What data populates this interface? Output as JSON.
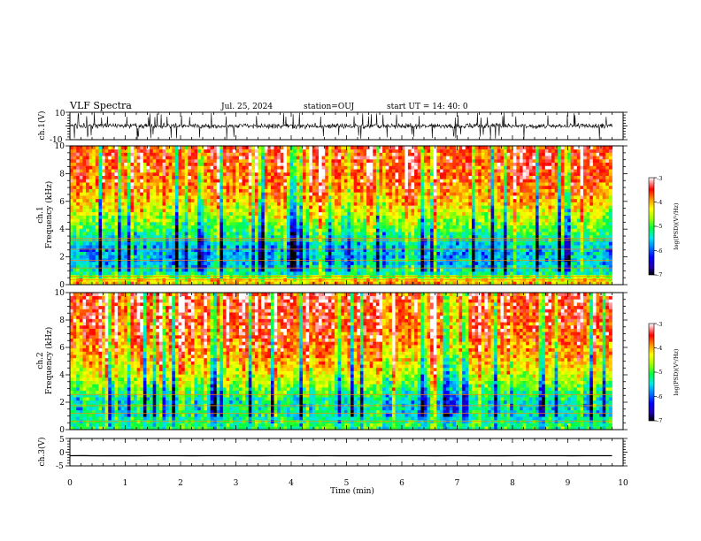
{
  "header": {
    "title": "VLF Spectra",
    "date": "Jul. 25, 2024",
    "station": "station=OUJ",
    "start": "start UT =  14: 40: 0"
  },
  "chart_data": [
    {
      "type": "line",
      "panel": "ch1-waveform",
      "ylabel": "ch.1(V)",
      "ylim": [
        -10,
        10
      ],
      "ytick_labels": [
        "10",
        "-10"
      ],
      "xlim": [
        0,
        10
      ],
      "data_extent_min": 9.8,
      "baseline": 0,
      "typical_amplitude": 2.5,
      "spike_amplitude": 10
    },
    {
      "type": "heatmap",
      "panel": "ch1-spectrogram",
      "ylabel_channel": "ch.1",
      "ylabel": "Frequency  (kHz)",
      "ylim": [
        0,
        10
      ],
      "ytick_labels": [
        "0",
        "2",
        "4",
        "6",
        "8",
        "10"
      ],
      "xlim": [
        0,
        10
      ],
      "data_extent_min": 9.8,
      "color_range": [
        -7,
        -3
      ],
      "colorbar_label": "log(PSD)(V²/Hz)",
      "colorbar_ticks": [
        "-3",
        "-4",
        "-5",
        "-6",
        "-7"
      ],
      "profile": [
        {
          "f": 0.3,
          "v": -4.0
        },
        {
          "f": 0.8,
          "v": -5.2
        },
        {
          "f": 1.5,
          "v": -5.6
        },
        {
          "f": 2.5,
          "v": -5.7
        },
        {
          "f": 3.5,
          "v": -5.2
        },
        {
          "f": 5.0,
          "v": -4.5
        },
        {
          "f": 6.5,
          "v": -3.9
        },
        {
          "f": 8.0,
          "v": -3.6
        },
        {
          "f": 10.0,
          "v": -3.5
        }
      ],
      "line_freqs": [
        0.35,
        0.6,
        1.2,
        1.75,
        2.55,
        3.2,
        3.35
      ]
    },
    {
      "type": "heatmap",
      "panel": "ch2-spectrogram",
      "ylabel_channel": "ch.2",
      "ylabel": "Frequency  (kHz)",
      "ylim": [
        0,
        10
      ],
      "ytick_labels": [
        "0",
        "2",
        "4",
        "6",
        "8",
        "10"
      ],
      "xlim": [
        0,
        10
      ],
      "data_extent_min": 9.8,
      "color_range": [
        -7,
        -3
      ],
      "colorbar_label": "log(PSD)(V²/Hz)",
      "colorbar_ticks": [
        "-3",
        "-4",
        "-5",
        "-6",
        "-7"
      ],
      "profile": [
        {
          "f": 0.3,
          "v": -5.0
        },
        {
          "f": 1.0,
          "v": -5.3
        },
        {
          "f": 2.0,
          "v": -5.4
        },
        {
          "f": 3.0,
          "v": -4.9
        },
        {
          "f": 4.0,
          "v": -4.4
        },
        {
          "f": 5.5,
          "v": -3.9
        },
        {
          "f": 7.0,
          "v": -3.6
        },
        {
          "f": 10.0,
          "v": -3.4
        }
      ],
      "line_freqs": [
        0.6,
        1.2,
        1.75,
        2.55
      ]
    },
    {
      "type": "line",
      "panel": "ch3-waveform",
      "ylabel": "ch.3(V)",
      "ylim": [
        -5,
        5
      ],
      "ytick_labels": [
        "5",
        "0",
        "-5"
      ],
      "xlim": [
        0,
        10
      ],
      "data_extent_min": 9.8,
      "baseline": -1.3,
      "typical_amplitude": 0.02,
      "xlabel": "Time  (min)",
      "xtick_labels": [
        "0",
        "1",
        "2",
        "3",
        "4",
        "5",
        "6",
        "7",
        "8",
        "9",
        "10"
      ]
    }
  ],
  "colors": {
    "axis": "#000000",
    "trace": "#000000",
    "colormap": [
      "#000000",
      "#2200aa",
      "#0000ff",
      "#0090ff",
      "#00e8e8",
      "#00ff40",
      "#a0ff00",
      "#ffff00",
      "#ff9000",
      "#ff0000",
      "#ffffff"
    ]
  }
}
